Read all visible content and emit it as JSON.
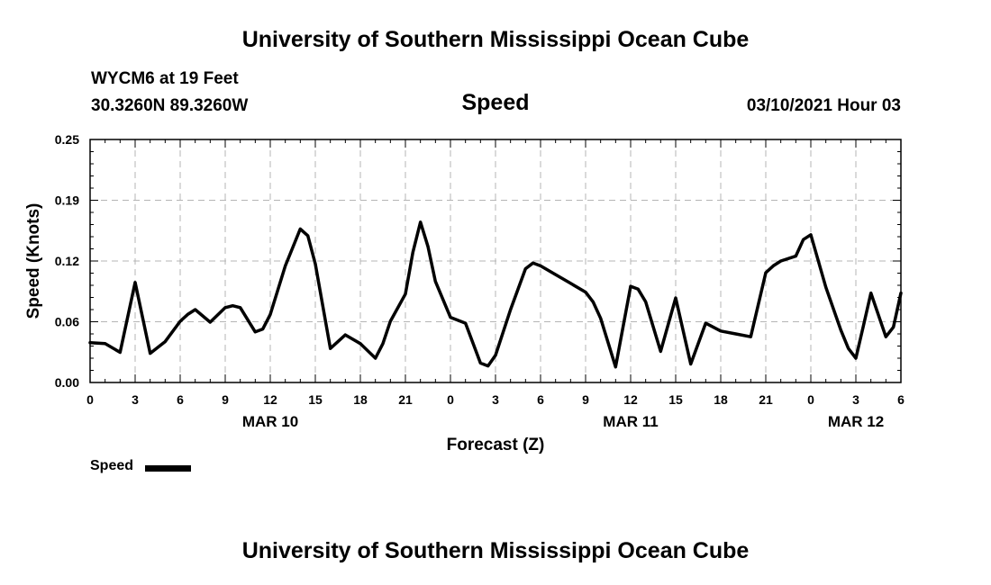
{
  "header": {
    "title": "University of Southern Mississippi Ocean Cube",
    "station": "WYCM6 at 19 Feet",
    "coords": "30.3260N 89.3260W",
    "variable": "Speed",
    "date": "03/10/2021 Hour 03"
  },
  "footer": {
    "title": "University of Southern Mississippi Ocean Cube"
  },
  "legend": {
    "label": "Speed"
  },
  "chart_data": {
    "type": "line",
    "title": "Speed",
    "xlabel": "Forecast (Z)",
    "ylabel": "Speed (Knots)",
    "ylim": [
      0,
      0.25
    ],
    "xlim": [
      0,
      54
    ],
    "yticks": [
      {
        "value": 0.0,
        "label": "0.00"
      },
      {
        "value": 0.0625,
        "label": "0.06"
      },
      {
        "value": 0.125,
        "label": "0.12"
      },
      {
        "value": 0.1875,
        "label": "0.19"
      },
      {
        "value": 0.25,
        "label": "0.25"
      }
    ],
    "xticks": [
      {
        "value": 0,
        "label": "0"
      },
      {
        "value": 3,
        "label": "3"
      },
      {
        "value": 6,
        "label": "6"
      },
      {
        "value": 9,
        "label": "9"
      },
      {
        "value": 12,
        "label": "12"
      },
      {
        "value": 15,
        "label": "15"
      },
      {
        "value": 18,
        "label": "18"
      },
      {
        "value": 21,
        "label": "21"
      },
      {
        "value": 24,
        "label": "0"
      },
      {
        "value": 27,
        "label": "3"
      },
      {
        "value": 30,
        "label": "6"
      },
      {
        "value": 33,
        "label": "9"
      },
      {
        "value": 36,
        "label": "12"
      },
      {
        "value": 39,
        "label": "15"
      },
      {
        "value": 42,
        "label": "18"
      },
      {
        "value": 45,
        "label": "21"
      },
      {
        "value": 48,
        "label": "0"
      },
      {
        "value": 51,
        "label": "3"
      },
      {
        "value": 54,
        "label": "6"
      }
    ],
    "day_labels": [
      {
        "value": 12,
        "label": "MAR 10"
      },
      {
        "value": 36,
        "label": "MAR 11"
      },
      {
        "value": 51,
        "label": "MAR 12"
      }
    ],
    "grid": true,
    "series": [
      {
        "name": "Speed",
        "color": "#000000",
        "x": [
          0,
          1,
          2,
          3,
          4,
          5,
          6,
          6.5,
          7,
          8,
          9,
          9.5,
          10,
          11,
          11.5,
          12,
          13,
          13.5,
          14,
          14.5,
          15,
          16,
          17,
          18,
          19,
          19.5,
          20,
          21,
          21.5,
          22,
          22.5,
          23,
          24,
          25,
          26,
          26.5,
          27,
          28,
          29,
          29.5,
          30,
          31,
          32,
          33,
          33.5,
          34,
          35,
          36,
          36.5,
          37,
          38,
          39,
          40,
          41,
          42,
          43,
          44,
          45,
          45.5,
          46,
          47,
          47.5,
          48,
          49,
          50,
          50.5,
          51,
          51.5,
          52,
          53,
          53.5,
          54
        ],
        "y": [
          0.041,
          0.04,
          0.031,
          0.103,
          0.03,
          0.042,
          0.063,
          0.07,
          0.075,
          0.062,
          0.077,
          0.079,
          0.077,
          0.052,
          0.055,
          0.07,
          0.12,
          0.139,
          0.158,
          0.151,
          0.122,
          0.035,
          0.049,
          0.04,
          0.025,
          0.04,
          0.063,
          0.091,
          0.134,
          0.165,
          0.14,
          0.104,
          0.067,
          0.061,
          0.02,
          0.017,
          0.028,
          0.075,
          0.117,
          0.123,
          0.12,
          0.111,
          0.102,
          0.093,
          0.083,
          0.066,
          0.016,
          0.099,
          0.096,
          0.083,
          0.032,
          0.087,
          0.019,
          0.061,
          0.053,
          0.05,
          0.047,
          0.113,
          0.12,
          0.125,
          0.13,
          0.147,
          0.152,
          0.098,
          0.054,
          0.035,
          0.025,
          0.058,
          0.092,
          0.047,
          0.057,
          0.092
        ]
      }
    ]
  }
}
